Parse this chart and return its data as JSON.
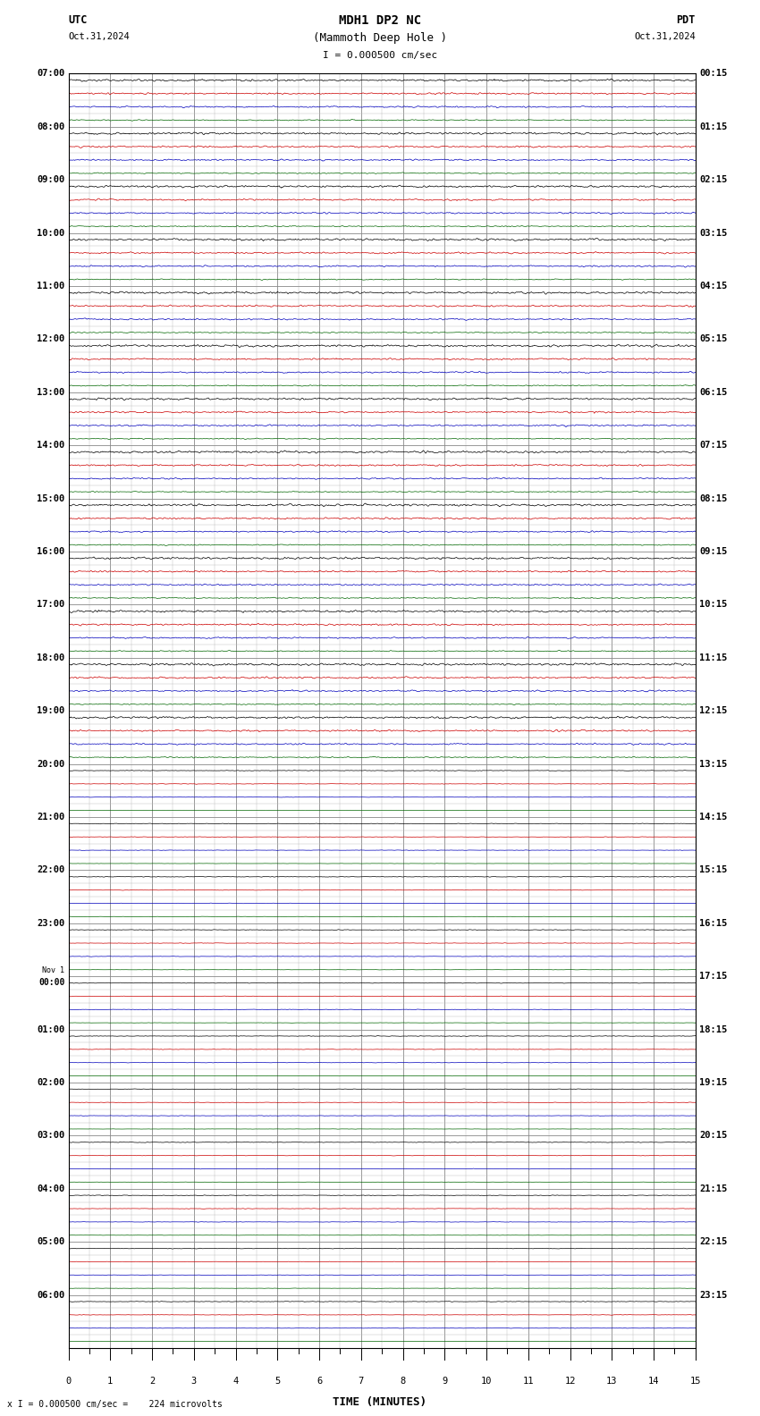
{
  "title_line1": "MDH1 DP2 NC",
  "title_line2": "(Mammoth Deep Hole )",
  "scale_text": "I = 0.000500 cm/sec",
  "utc_label": "UTC",
  "utc_date": "Oct.31,2024",
  "pdt_label": "PDT",
  "pdt_date": "Oct.31,2024",
  "xlabel": "TIME (MINUTES)",
  "footer_text": "x I = 0.000500 cm/sec =    224 microvolts",
  "xmin": 0,
  "xmax": 15,
  "background_color": "#ffffff",
  "grid_color_major": "#888888",
  "grid_color_minor": "#bbbbbb",
  "trace_colors": [
    "#000000",
    "#cc0000",
    "#0000bb",
    "#006600"
  ],
  "noise_amp": 0.06,
  "noise_amp_later": 0.02
}
